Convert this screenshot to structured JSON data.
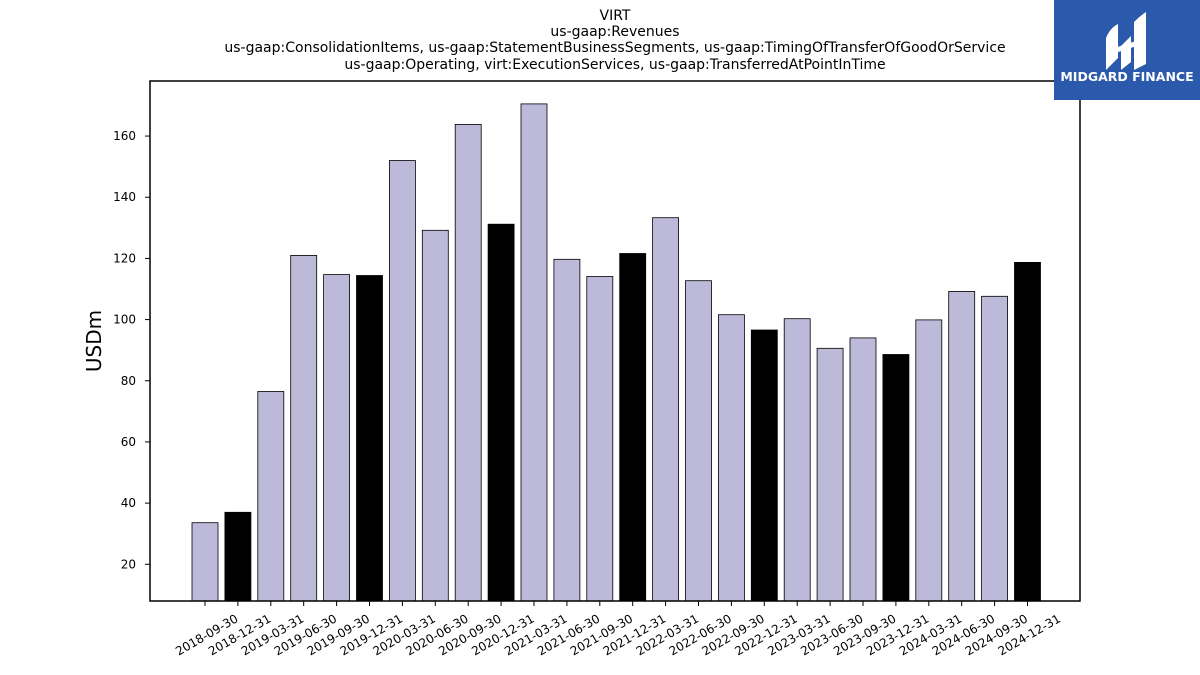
{
  "chart_data": {
    "type": "bar",
    "title_lines": [
      "VIRT",
      "us-gaap:Revenues",
      "us-gaap:ConsolidationItems, us-gaap:StatementBusinessSegments, us-gaap:TimingOfTransferOfGoodOrService",
      "us-gaap:Operating, virt:ExecutionServices, us-gaap:TransferredAtPointInTime"
    ],
    "ylabel": "USDm",
    "xlabel": "",
    "ylim": [
      8,
      178
    ],
    "yticks": [
      20,
      40,
      60,
      80,
      100,
      120,
      140,
      160
    ],
    "grid": false,
    "categories": [
      "2018-09-30",
      "2018-12-31",
      "2019-03-31",
      "2019-06-30",
      "2019-09-30",
      "2019-12-31",
      "2020-03-31",
      "2020-06-30",
      "2020-09-30",
      "2020-12-31",
      "2021-03-31",
      "2021-06-30",
      "2021-09-30",
      "2021-12-31",
      "2022-03-31",
      "2022-06-30",
      "2022-09-30",
      "2022-12-31",
      "2023-03-31",
      "2023-06-30",
      "2023-09-30",
      "2023-12-31",
      "2024-03-31",
      "2024-06-30",
      "2024-09-30",
      "2024-12-31"
    ],
    "values": [
      33.6,
      37.0,
      76.5,
      121.0,
      114.7,
      114.4,
      152.0,
      129.2,
      163.8,
      131.2,
      170.5,
      119.7,
      114.1,
      121.6,
      133.3,
      112.7,
      101.6,
      96.6,
      100.3,
      90.6,
      94.0,
      88.6,
      99.9,
      109.2,
      107.6,
      118.7
    ],
    "highlighted": [
      false,
      true,
      false,
      false,
      false,
      true,
      false,
      false,
      false,
      true,
      false,
      false,
      false,
      true,
      false,
      false,
      false,
      true,
      false,
      false,
      false,
      true,
      false,
      false,
      false,
      true
    ],
    "colors": {
      "bar": "#bcb9d9",
      "highlight": "#000000",
      "edge": "#000000"
    }
  },
  "logo": {
    "text": "MIDGARD FINANCE",
    "background": "#2b5aad"
  }
}
